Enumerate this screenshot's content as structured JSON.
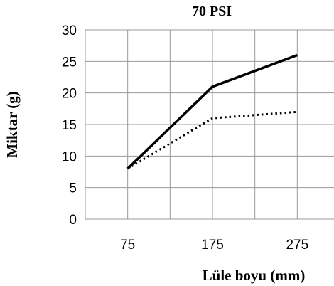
{
  "chart_data": {
    "type": "line",
    "title": "70 PSI",
    "xlabel": "Lüle boyu (mm)",
    "ylabel": "Miktar (g)",
    "categories": [
      "75",
      "175",
      "275"
    ],
    "ylim": [
      0,
      30
    ],
    "yticks": [
      "0",
      "5",
      "10",
      "15",
      "20",
      "25",
      "30"
    ],
    "grid": true,
    "legend": "none",
    "series": [
      {
        "values": [
          8,
          21,
          26
        ],
        "style": "solid",
        "color": "#000000"
      },
      {
        "values": [
          8,
          16,
          17
        ],
        "style": "dotted",
        "color": "#000000"
      }
    ]
  }
}
